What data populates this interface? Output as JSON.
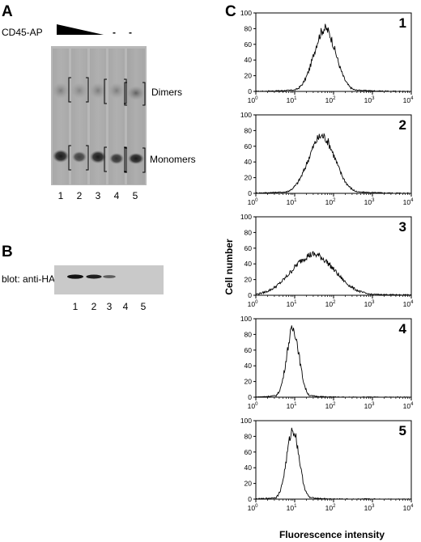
{
  "panel_a": {
    "letter": "A",
    "treatment_label": "CD45-AP",
    "minus_signs": [
      "-",
      "-"
    ],
    "lane_numbers": [
      "1",
      "2",
      "3",
      "4",
      "5"
    ],
    "band_labels": {
      "dimers": "Dimers",
      "monomers": "Monomers"
    }
  },
  "panel_b": {
    "letter": "B",
    "blot_label": "blot: anti-HA",
    "lane_numbers": [
      "1",
      "2",
      "3",
      "4",
      "5"
    ],
    "band_intensity": [
      1.0,
      0.9,
      0.45,
      0.0,
      0.0
    ]
  },
  "panel_c": {
    "letter": "C",
    "y_axis_title": "Cell number",
    "x_axis_title": "Fluorescence intensity",
    "x_tick_base": "10",
    "x_tick_exponents": [
      "0",
      "1",
      "2",
      "3",
      "4"
    ],
    "y_ticks": [
      "0",
      "20",
      "40",
      "60",
      "80",
      "100"
    ]
  },
  "chart_data": [
    {
      "type": "area",
      "panel": "1",
      "x_scale": "log",
      "xlim": [
        1,
        10000
      ],
      "ylim": [
        0,
        100
      ],
      "peak_fluorescence": 60,
      "peak_cell_number": 80,
      "log_spread": 0.28
    },
    {
      "type": "area",
      "panel": "2",
      "x_scale": "log",
      "xlim": [
        1,
        10000
      ],
      "ylim": [
        0,
        100
      ],
      "peak_fluorescence": 50,
      "peak_cell_number": 73,
      "log_spread": 0.34
    },
    {
      "type": "area",
      "panel": "3",
      "x_scale": "log",
      "xlim": [
        1,
        10000
      ],
      "ylim": [
        0,
        100
      ],
      "peak_fluorescence": 30,
      "peak_cell_number": 52,
      "log_spread": 0.55
    },
    {
      "type": "area",
      "panel": "4",
      "x_scale": "log",
      "xlim": [
        1,
        10000
      ],
      "ylim": [
        0,
        100
      ],
      "peak_fluorescence": 9,
      "peak_cell_number": 87,
      "log_spread": 0.16
    },
    {
      "type": "area",
      "panel": "5",
      "x_scale": "log",
      "xlim": [
        1,
        10000
      ],
      "ylim": [
        0,
        100
      ],
      "peak_fluorescence": 9,
      "peak_cell_number": 88,
      "log_spread": 0.16
    }
  ]
}
